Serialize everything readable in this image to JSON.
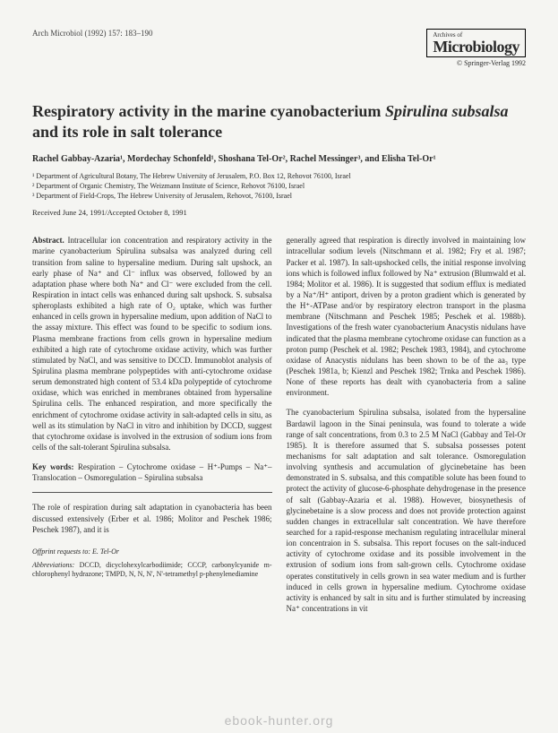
{
  "header": {
    "journal_ref": "Arch Microbiol (1992) 157: 183–190",
    "archives_of": "Archives of",
    "journal_name": "Microbiology",
    "copyright": "© Springer-Verlag 1992"
  },
  "title": {
    "part1": "Respiratory activity in the marine cyanobacterium ",
    "italic": "Spirulina subsalsa",
    "part2": " and its role in salt tolerance"
  },
  "authors": "Rachel Gabbay-Azaria¹, Mordechay Schonfeld¹, Shoshana Tel-Or², Rachel Messinger³, and Elisha Tel-Or¹",
  "affiliations": {
    "a1": "¹ Department of Agricultural Botany, The Hebrew University of Jerusalem, P.O. Box 12, Rehovot 76100, Israel",
    "a2": "² Department of Organic Chemistry, The Weizmann Institute of Science, Rehovot 76100, Israel",
    "a3": "³ Department of Field-Crops, The Hebrew University of Jerusalem, Rehovot, 76100, Israel"
  },
  "received": "Received June 24, 1991/Accepted October 8, 1991",
  "abstract": {
    "label": "Abstract.",
    "text": " Intracellular ion concentration and respiratory activity in the marine cyanobacterium Spirulina subsalsa was analyzed during cell transition from saline to hypersaline medium. During salt upshock, an early phase of Na⁺ and Cl⁻ influx was observed, followed by an adaptation phase where both Na⁺ and Cl⁻ were excluded from the cell. Respiration in intact cells was enhanced during salt upshock. S. subsalsa spheroplasts exhibited a high rate of O₂ uptake, which was further enhanced in cells grown in hypersaline medium, upon addition of NaCl to the assay mixture. This effect was found to be specific to sodium ions. Plasma membrane fractions from cells grown in hypersaline medium exhibited a high rate of cytochrome oxidase activity, which was further stimulated by NaCl, and was sensitive to DCCD. Immunoblot analysis of Spirulina plasma membrane polypeptides with anti-cytochrome oxidase serum demonstrated high content of 53.4 kDa polypeptide of cytochrome oxidase, which was enriched in membranes obtained from hypersaline Spirulina cells. The enhanced respiration, and more specifically the enrichment of cytochrome oxidase activity in salt-adapted cells in situ, as well as its stimulation by NaCl in vitro and inhibition by DCCD, suggest that cytochrome oxidase is involved in the extrusion of sodium ions from cells of the salt-tolerant Spirulina subsalsa."
  },
  "keywords": {
    "label": "Key words:",
    "text": " Respiration – Cytochrome oxidase – H⁺-Pumps – Na⁺–Translocation – Osmoregulation – Spirulina subsalsa"
  },
  "intro": "The role of respiration during salt adaptation in cyanobacteria has been discussed extensively (Erber et al. 1986; Molitor and Peschek 1986; Peschek 1987), and it is",
  "col2": {
    "p1": "generally agreed that respiration is directly involved in maintaining low intracellular sodium levels (Nitschmann et al. 1982; Fry et al. 1987; Packer et al. 1987). In salt-upshocked cells, the initial response involving ions which is followed influx followed by Na⁺ extrusion (Blumwald et al. 1984; Molitor et al. 1986). It is suggested that sodium efflux is mediated by a Na⁺/H⁺ antiport, driven by a proton gradient which is generated by the H⁺-ATPase and/or by respiratory electron transport in the plasma membrane (Nitschmann and Peschek 1985; Peschek et al. 1988b). Investigations of the fresh water cyanobacterium Anacystis nidulans have indicated that the plasma membrane cytochrome oxidase can function as a proton pump (Peschek et al. 1982; Peschek 1983, 1984), and cytochrome oxidase of Anacystis nidulans has been shown to be of the aa₃ type (Peschek 1981a, b; Kienzl and Peschek 1982; Trnka and Peschek 1986). None of these reports has dealt with cyanobacteria from a saline environment.",
    "p2": "The cyanobacterium Spirulina subsalsa, isolated from the hypersaline Bardawil lagoon in the Sinai peninsula, was found to tolerate a wide range of salt concentrations, from 0.3 to 2.5 M NaCl (Gabbay and Tel-Or 1985). It is therefore assumed that S. subsalsa possesses potent mechanisms for salt adaptation and salt tolerance. Osmoregulation involving synthesis and accumulation of glycinebetaine has been demonstrated in S. subsalsa, and this compatible solute has been found to protect the activity of glucose-6-phosphate dehydrogenase in the presence of salt (Gabbay-Azaria et al. 1988). However, biosynethesis of glycinebetaine is a slow process and does not provide protection against sudden changes in extracellular salt concentration. We have therefore searched for a rapid-response mechanism regulating intracellular mineral ion concentraion in S. subsalsa. This report focuses on the salt-induced activity of cytochrome oxidase and its possible involvement in the extrusion of sodium ions from salt-grown cells. Cytochrome oxidase operates constitutively in cells grown in sea water medium and is further induced in cells grown in hypersaline medium. Cytochrome oxidase activity is enhanced by salt in situ and is further stimulated by increasing Na⁺ concentrations in vit"
  },
  "footer": {
    "offprint_label": "Offprint requests to:",
    "offprint_to": " E. Tel-Or",
    "abbrev_label": "Abbreviations:",
    "abbrev_text": " DCCD, dicyclohexylcarbodiimide; CCCP, carbonylcyanide m-chlorophenyl hydrazone; TMPD, N, N, N', N'-tetramethyl p-phenylenediamine"
  },
  "watermark": "ebook-hunter.org"
}
